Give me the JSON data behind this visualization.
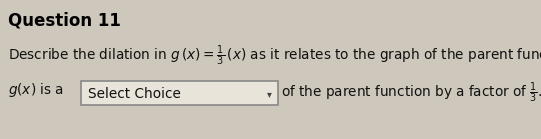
{
  "title": "Question 11",
  "line1_prefix": "Describe the dilation in ",
  "line1_math": "g\\,(x) = \\frac{1}{3}\\,(x)",
  "line1_suffix": " as it relates to the graph of the parent function.",
  "line2_prefix": "g(x) is a",
  "dropdown_text": "Select Choice",
  "line2_suffix_math": "of the parent function by a factor of $\\frac{1}{3}$.",
  "bg_color": "#cec8bc",
  "text_color": "#111111",
  "title_color": "#000000",
  "box_facecolor": "#e8e4da",
  "box_edgecolor": "#888888",
  "title_fontsize": 12,
  "body_fontsize": 9.8
}
